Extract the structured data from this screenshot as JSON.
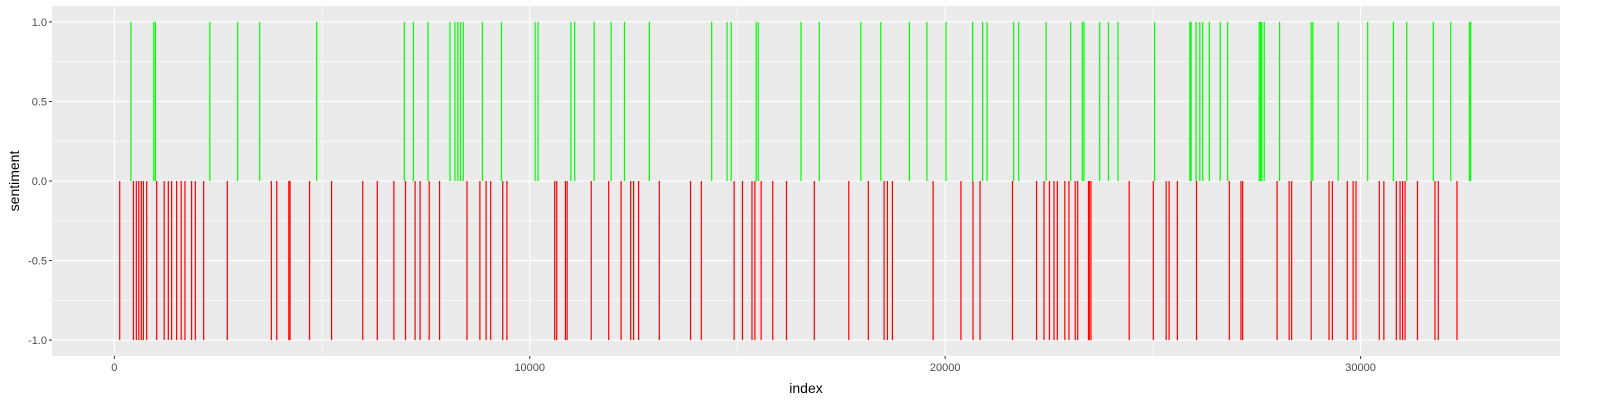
{
  "chart_data": {
    "type": "bar",
    "xlabel": "index",
    "ylabel": "sentiment",
    "xlim": [
      -1500,
      34800
    ],
    "ylim": [
      -1.1,
      1.1
    ],
    "x_ticks": [
      0,
      10000,
      20000,
      30000
    ],
    "x_tick_labels": [
      "0",
      "10000",
      "20000",
      "30000"
    ],
    "y_ticks": [
      -1.0,
      -0.5,
      0.0,
      0.5,
      1.0
    ],
    "y_tick_labels": [
      "-1.0",
      "-0.5",
      "0.0",
      "0.5",
      "1.0"
    ],
    "grid": true,
    "legend": "none",
    "colors": {
      "positive": "#00ff00",
      "negative": "#ff0000",
      "panel": "#ebebeb",
      "grid_major": "#ffffff",
      "tick_text": "#4d4d4d"
    },
    "series": [
      {
        "sign": "positive",
        "value": 1.0,
        "x": [
          400,
          950,
          990,
          2300,
          2970,
          3500,
          4870,
          6980,
          7200,
          7550,
          8080,
          8200,
          8270,
          8330,
          8400,
          8860,
          9320,
          10130,
          10200,
          10990,
          11080,
          11550,
          11960,
          12280,
          12880,
          14380,
          14750,
          14850,
          15450,
          15500,
          16530,
          16970,
          17970,
          18450,
          19140,
          19560,
          20020,
          20660,
          20900,
          21010,
          21650,
          21770,
          22430,
          23020,
          23300,
          23340,
          23720,
          23930,
          24160,
          25040,
          25890,
          25920,
          26040,
          26130,
          26200,
          26360,
          26620,
          26800,
          27560,
          27590,
          27620,
          27680,
          28050,
          28810,
          28850,
          29460,
          30170,
          30790,
          31110,
          31750,
          32170,
          32620,
          32650
        ]
      },
      {
        "sign": "negative",
        "value": -1.0,
        "x": [
          130,
          460,
          530,
          590,
          650,
          700,
          780,
          1020,
          1200,
          1300,
          1380,
          1500,
          1610,
          1700,
          1860,
          1950,
          2150,
          2720,
          3780,
          3910,
          4200,
          4230,
          4700,
          5230,
          5980,
          6330,
          6730,
          7010,
          7240,
          7360,
          7580,
          7830,
          8490,
          8800,
          8950,
          9060,
          9350,
          9450,
          10600,
          10650,
          10860,
          10900,
          11480,
          11900,
          12200,
          12430,
          12500,
          12620,
          13120,
          13870,
          14130,
          14920,
          15120,
          15350,
          15420,
          15570,
          15850,
          16180,
          16850,
          17680,
          18150,
          18530,
          18610,
          18730,
          19710,
          20380,
          20670,
          20840,
          21620,
          22200,
          22380,
          22510,
          22620,
          22700,
          22880,
          22980,
          23130,
          23190,
          23450,
          23470,
          23510,
          24430,
          25010,
          25320,
          25390,
          25590,
          26050,
          26840,
          27120,
          27160,
          27990,
          28280,
          28340,
          28810,
          29240,
          29320,
          29680,
          29820,
          29890,
          30450,
          30560,
          30860,
          30950,
          31010,
          31070,
          31370,
          31790,
          31870,
          32320
        ]
      }
    ]
  }
}
